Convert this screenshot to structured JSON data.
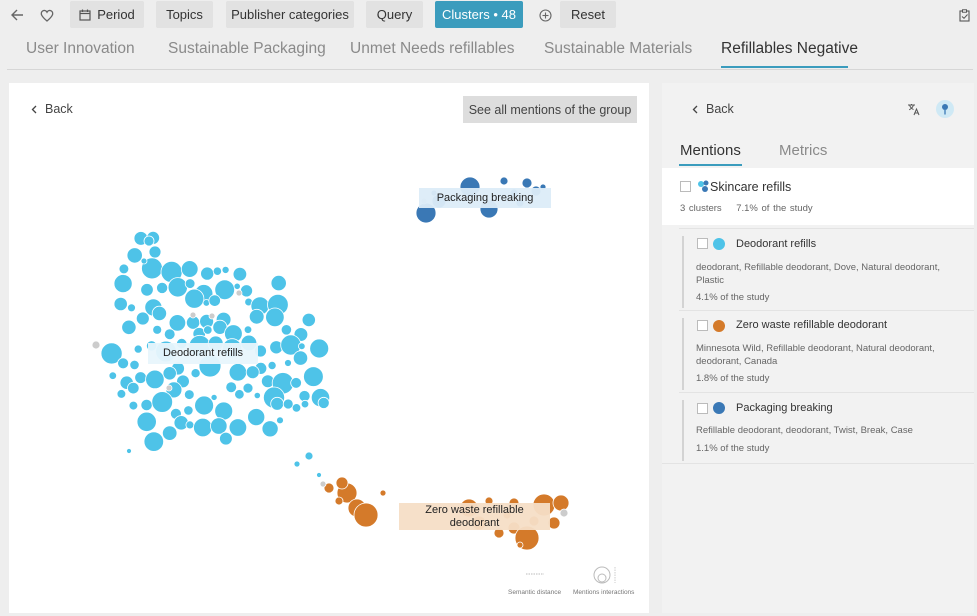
{
  "toolbar": {
    "period": "Period",
    "topics": "Topics",
    "publisher_categories": "Publisher categories",
    "query": "Query",
    "clusters": "Clusters • 48",
    "reset": "Reset"
  },
  "tabs": [
    "User Innovation",
    "Sustainable Packaging",
    "Unmet Needs refillables",
    "Sustainable Materials",
    "Refillables Negative"
  ],
  "left": {
    "back": "Back",
    "see_all": "See all mentions of the group",
    "legend_semantic": "Semantic distance",
    "legend_mentions": "Mentions interactions"
  },
  "chart_data": {
    "type": "scatter",
    "clusters": [
      {
        "name": "Deodorant refills",
        "color": "#4ec3e8"
      },
      {
        "name": "Zero waste refillable deodorant",
        "color": "#d47a2a"
      },
      {
        "name": "Packaging breaking",
        "color": "#3a78b5"
      }
    ],
    "outlier_color": "#cccccc"
  },
  "right": {
    "back": "Back",
    "tab_mentions": "Mentions",
    "tab_metrics": "Metrics",
    "group_title": "Skincare refills",
    "group_clusters": "3 clusters",
    "group_share": "7.1% of the study",
    "clusters": [
      {
        "name": "Deodorant refills",
        "color": "#4ec3e8",
        "keywords": "deodorant, Refillable deodorant, Dove, Natural deodorant, Plastic",
        "share": "4.1% of the study"
      },
      {
        "name": "Zero waste refillable deodorant",
        "color": "#d47a2a",
        "keywords": "Minnesota Wild, Refillable deodorant, Natural deodorant, deodorant, Canada",
        "share": "1.8% of the study"
      },
      {
        "name": "Packaging breaking",
        "color": "#3a78b5",
        "keywords": "Refillable deodorant, deodorant, Twist, Break, Case",
        "share": "1.1% of the study"
      }
    ]
  }
}
